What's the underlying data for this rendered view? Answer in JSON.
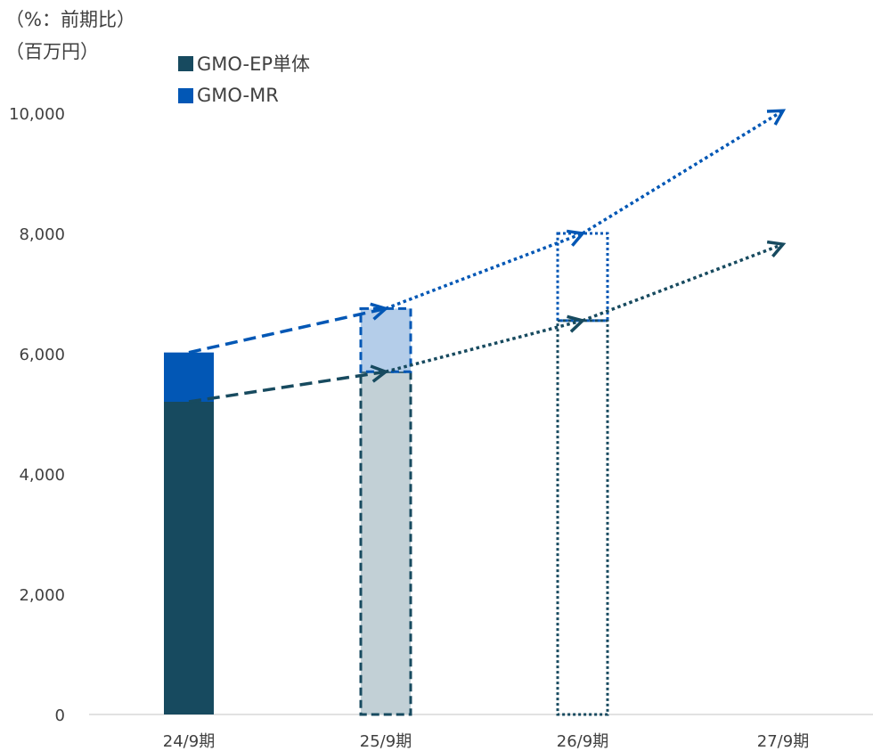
{
  "chart_data": {
    "type": "bar",
    "stacked": true,
    "units": [
      "（%：前期比）",
      "（百万円）"
    ],
    "categories": [
      "24/9期",
      "25/9期",
      "26/9期",
      "27/9期"
    ],
    "ylim": [
      0,
      10000
    ],
    "yticks": [
      "0",
      "2,000",
      "4,000",
      "6,000",
      "8,000",
      "10,000"
    ],
    "ytick_values": [
      0,
      2000,
      4000,
      6000,
      8000,
      10000
    ],
    "grid": false,
    "legend_position": "top-left",
    "series": [
      {
        "name": "GMO-EP単体",
        "color": "#174a5f",
        "values": [
          5200,
          5700,
          6550,
          7820
        ],
        "bar_style": [
          "solid",
          "dashed-light",
          "dotted-outline",
          "none"
        ]
      },
      {
        "name": "GMO-MR",
        "color": "#0257b5",
        "values": [
          820,
          1050,
          1450,
          2220
        ],
        "bar_style": [
          "solid",
          "dashed-light",
          "dotted-outline",
          "none"
        ]
      }
    ],
    "trend_arrows": true
  }
}
